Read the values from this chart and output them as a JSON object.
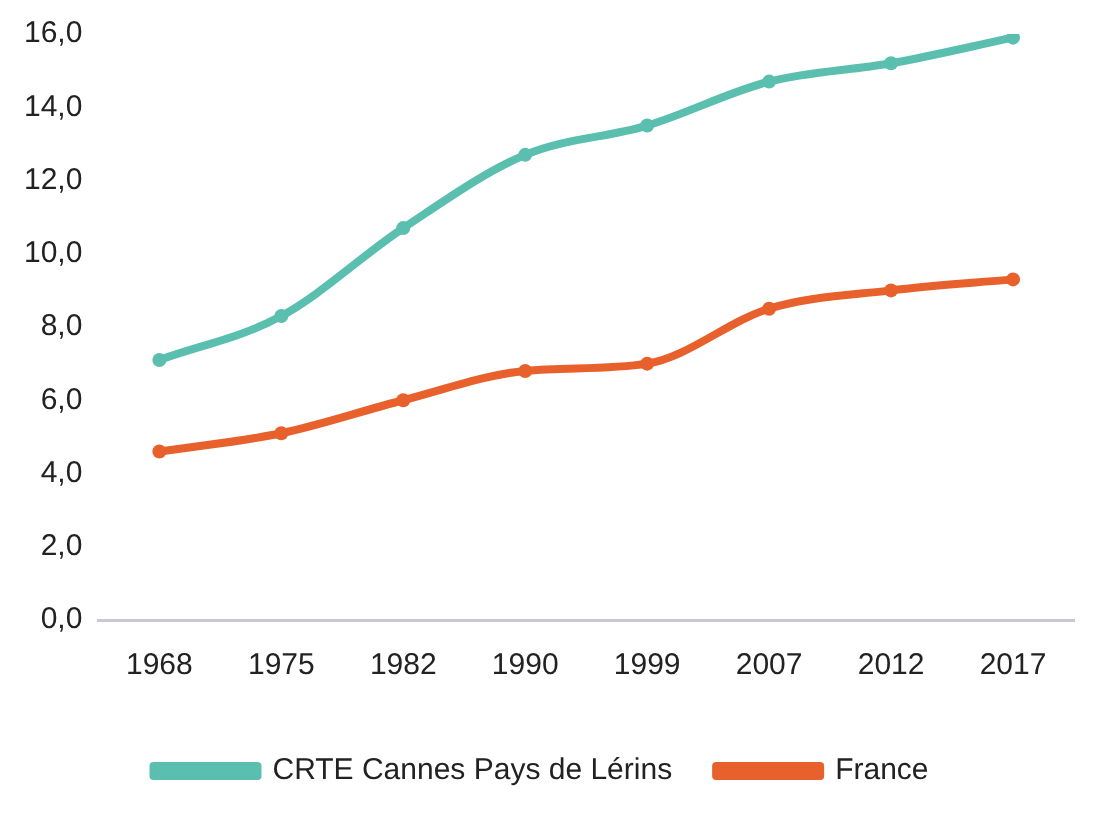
{
  "chart_data": {
    "type": "line",
    "categories": [
      "1968",
      "1975",
      "1982",
      "1990",
      "1999",
      "2007",
      "2012",
      "2017"
    ],
    "series": [
      {
        "name": "CRTE Cannes Pays de Lérins",
        "color": "#5bbfb0",
        "values": [
          7.1,
          8.3,
          10.7,
          12.7,
          13.5,
          14.7,
          15.2,
          15.9
        ]
      },
      {
        "name": "France",
        "color": "#e8602c",
        "values": [
          4.6,
          5.1,
          6.0,
          6.8,
          7.0,
          8.5,
          9.0,
          9.3
        ]
      }
    ],
    "ylim": [
      0,
      16
    ],
    "yticks": [
      {
        "value": 0,
        "label": "0,0"
      },
      {
        "value": 2,
        "label": "2,0"
      },
      {
        "value": 4,
        "label": "4,0"
      },
      {
        "value": 6,
        "label": "6,0"
      },
      {
        "value": 8,
        "label": "8,0"
      },
      {
        "value": 10,
        "label": "10,0"
      },
      {
        "value": 12,
        "label": "12,0"
      },
      {
        "value": 14,
        "label": "14,0"
      },
      {
        "value": 16,
        "label": "16,0"
      }
    ],
    "grid": false,
    "legend": "bottom",
    "marker": "circle",
    "line_style": "solid"
  }
}
